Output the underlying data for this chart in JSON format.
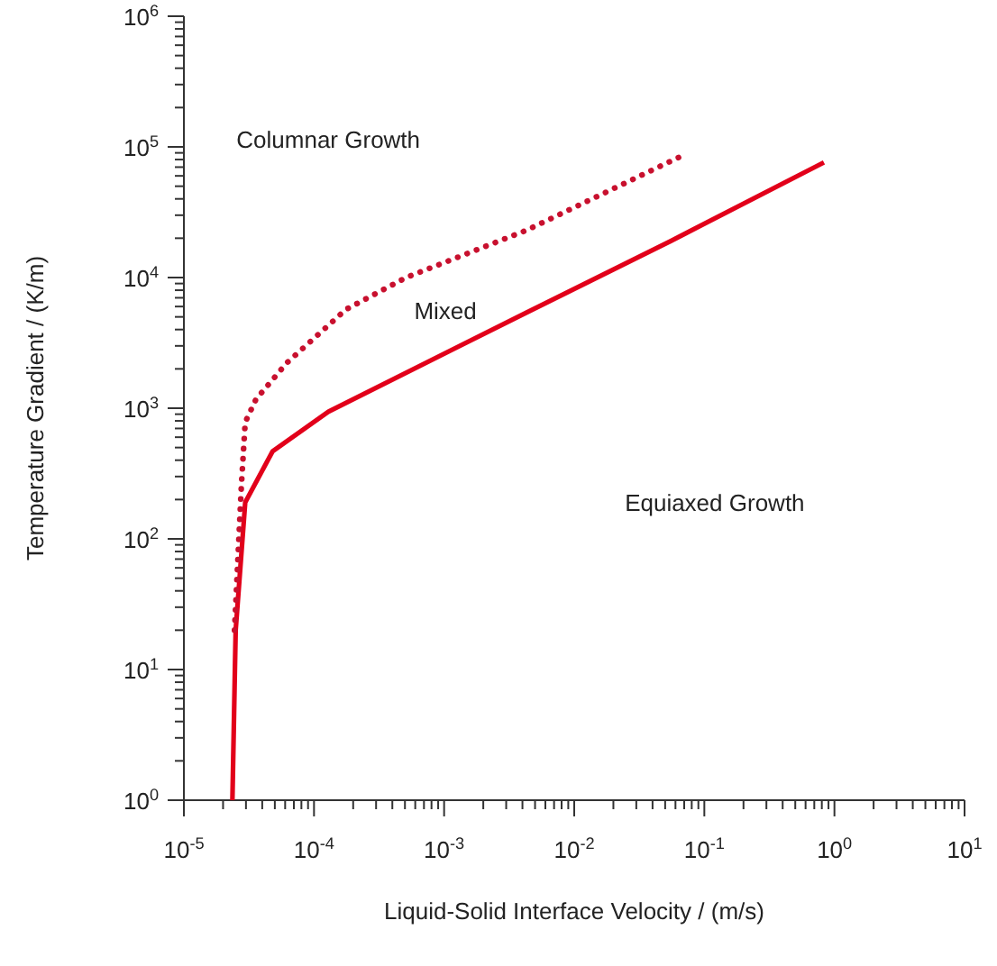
{
  "chart_data": {
    "type": "line",
    "xlabel": "Liquid-Solid Interface Velocity / (m/s)",
    "ylabel": "Temperature Gradient / (K/m)",
    "log": "xy",
    "grid": false,
    "xlim": [
      1e-05,
      10
    ],
    "ylim": [
      1,
      1000000.0
    ],
    "xticks": [
      {
        "value": 1e-05,
        "label": "10$^{-5}$"
      },
      {
        "value": 0.0001,
        "label": "10$^{-4}$"
      },
      {
        "value": 0.001,
        "label": "10$^{-3}$"
      },
      {
        "value": 0.01,
        "label": "10$^{-2}$"
      },
      {
        "value": 0.1,
        "label": "10$^{-1}$"
      },
      {
        "value": 1,
        "label": "10$^{0}$"
      },
      {
        "value": 10,
        "label": "10$^{1}$"
      }
    ],
    "yticks": [
      {
        "value": 1,
        "label": "10$^{0}$"
      },
      {
        "value": 10,
        "label": "10$^{1}$"
      },
      {
        "value": 100,
        "label": "10$^{2}$"
      },
      {
        "value": 1000,
        "label": "10$^{3}$"
      },
      {
        "value": 10000,
        "label": "10$^{4}$"
      },
      {
        "value": 100000,
        "label": "10$^{5}$"
      },
      {
        "value": 1000000,
        "label": "10$^{6}$"
      }
    ],
    "series": [
      {
        "color": "#e2001a",
        "line_style": "solid",
        "x": [
          2.36e-05,
          2.5e-05,
          2.96e-05,
          4.8e-05,
          0.000129,
          0.0043,
          0.055,
          0.83
        ],
        "values": [
          1,
          20,
          190,
          467,
          940,
          5400,
          19000,
          76000
        ]
      },
      {
        "color": "#c8102e",
        "line_style": "dotted",
        "x": [
          2.45e-05,
          2.77e-05,
          2.96e-05,
          3.58e-05,
          6.2e-05,
          0.000176,
          0.00051,
          0.0043,
          0.07
        ],
        "values": [
          20,
          263,
          780,
          1170,
          2230,
          5700,
          10000,
          23000,
          87000
        ]
      }
    ],
    "annotations": [
      "Columnar Growth",
      "Mixed",
      "Equiaxed Growth"
    ]
  }
}
